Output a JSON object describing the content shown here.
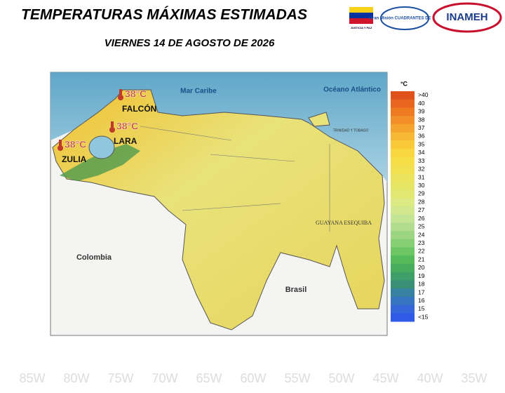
{
  "header": {
    "title": "TEMPERATURAS MÁXIMAS ESTIMADAS",
    "date": "VIERNES 14 DE AGOSTO DE 2026",
    "logos": [
      "JUSTICIA Y PAZ",
      "Gran Misión CUADRANTES DE PAZ",
      "INAMEH"
    ]
  },
  "map": {
    "labels": {
      "sea": "Mar Caribe",
      "ocean": "Océano Atlántico",
      "colombia": "Colombia",
      "brasil": "Brasil",
      "esequiba": "GUAYANA ESEQUIBA",
      "trinidad": "TRINIDAD Y TOBAGO"
    },
    "callouts": [
      {
        "temp": "38°C",
        "state": "FALCÓN"
      },
      {
        "temp": "38°C",
        "state": "LARA"
      },
      {
        "temp": "38°C",
        "state": "ZULIA"
      }
    ]
  },
  "legend": {
    "unit": "°C",
    "labels": [
      ">40",
      "40",
      "39",
      "38",
      "37",
      "36",
      "35",
      "34",
      "33",
      "32",
      "31",
      "30",
      "29",
      "28",
      "27",
      "26",
      "25",
      "24",
      "23",
      "22",
      "21",
      "20",
      "19",
      "18",
      "17",
      "16",
      "15",
      "<15"
    ],
    "colors": [
      "#e0521b",
      "#e8661f",
      "#ee7a22",
      "#f28f28",
      "#f5a42e",
      "#f8b834",
      "#f9c93a",
      "#fad640",
      "#f7de48",
      "#f1e151",
      "#ebe35b",
      "#e6e565",
      "#e2e772",
      "#dde982",
      "#d3e88e",
      "#c5e494",
      "#b2dd8e",
      "#9dd682",
      "#86cf73",
      "#6cc664",
      "#55bb5a",
      "#48ad5e",
      "#3f9f68",
      "#3a9074",
      "#3782a0",
      "#3775c0",
      "#3567d8",
      "#2f5ae8"
    ]
  },
  "background": {
    "longitudes": [
      "85W",
      "80W",
      "75W",
      "70W",
      "65W",
      "60W",
      "55W",
      "50W",
      "45W",
      "40W",
      "35W"
    ]
  }
}
